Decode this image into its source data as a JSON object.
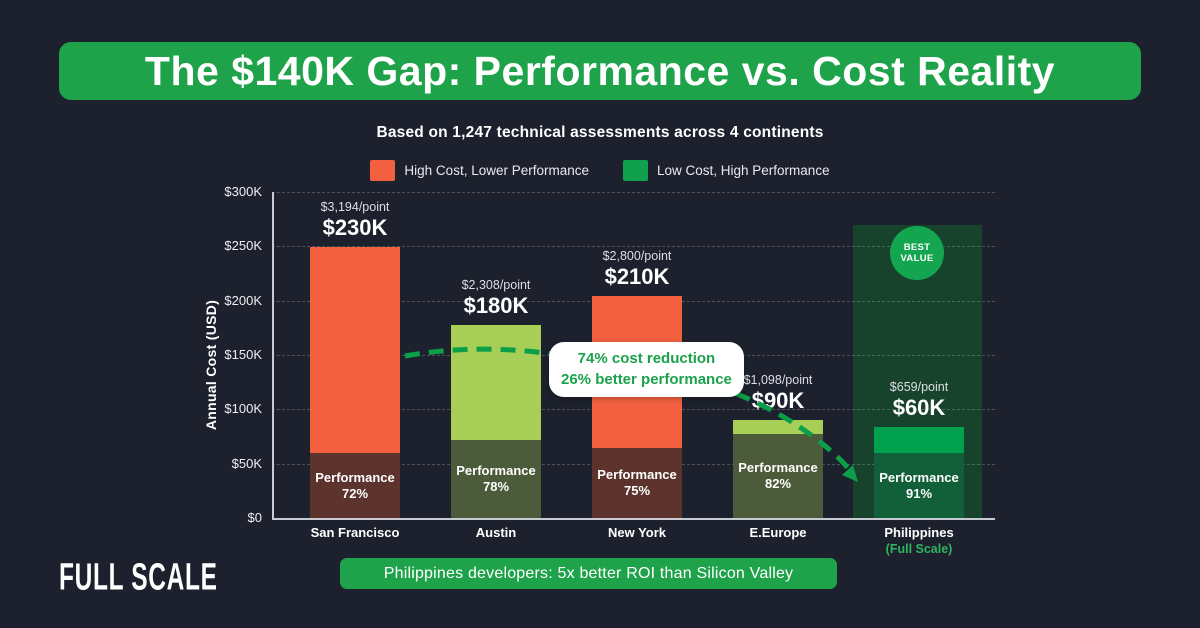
{
  "title": "The $140K Gap: Performance vs. Cost Reality",
  "subtitle": "Based on 1,247 technical assessments across 4 continents",
  "legend": [
    {
      "label": "High Cost, Lower Performance",
      "color": "#F2603F"
    },
    {
      "label": "Low Cost, High Performance",
      "color": "#0FA14D"
    }
  ],
  "chart_data": {
    "type": "bar",
    "title": "The $140K Gap: Performance vs. Cost Reality",
    "ylabel": "Annual Cost (USD)",
    "ylim_usd": [
      0,
      300000
    ],
    "y_ticks": [
      "$0",
      "$50K",
      "$100K",
      "$150K",
      "$200K",
      "$250K",
      "$300K"
    ],
    "grid": "dashed horizontal",
    "legend_position": "top center",
    "categories": [
      "San Francisco",
      "Austin",
      "New York",
      "E.Europe",
      "Philippines"
    ],
    "performance_word": "Performance",
    "bars": [
      {
        "city": "San Francisco",
        "annual_cost_usd": 230000,
        "cost_label": "$230K",
        "cost_per_point_label": "$3,194/point",
        "performance_pct": "72%",
        "segment_colors": {
          "cost": "#F2603F",
          "performance": "#5C342D"
        }
      },
      {
        "city": "Austin",
        "annual_cost_usd": 180000,
        "cost_label": "$180K",
        "cost_per_point_label": "$2,308/point",
        "performance_pct": "78%",
        "segment_colors": {
          "cost": "#A7CE56",
          "performance": "#4C5B39"
        }
      },
      {
        "city": "New York",
        "annual_cost_usd": 210000,
        "cost_label": "$210K",
        "cost_per_point_label": "$2,800/point",
        "performance_pct": "75%",
        "segment_colors": {
          "cost": "#F2603F",
          "performance": "#5C342D"
        }
      },
      {
        "city": "E.Europe",
        "annual_cost_usd": 90000,
        "cost_label": "$90K",
        "cost_per_point_label": "$1,098/point",
        "performance_pct": "82%",
        "segment_colors": {
          "cost": "#A7CE56",
          "performance": "#4C5B39"
        }
      },
      {
        "city": "Philippines",
        "sublabel": "(Full Scale)",
        "annual_cost_usd": 60000,
        "cost_label": "$60K",
        "cost_per_point_label": "$659/point",
        "performance_pct": "91%",
        "segment_colors": {
          "cost": "#00A04E",
          "performance": "#11603A"
        },
        "highlight": true,
        "badge": "BEST VALUE"
      }
    ]
  },
  "callout": {
    "line1": "74% cost reduction",
    "line2": "26% better performance"
  },
  "badge": {
    "line1": "BEST",
    "line2": "VALUE"
  },
  "footer_banner": "Philippines developers: 5x better ROI than Silicon Valley",
  "logo": "FULL SCALE",
  "colors": {
    "background": "#1D212D",
    "brand_green": "#1EA24A",
    "badge_green": "#14A551",
    "highlight_column_green": "#17432C",
    "arrow_green": "#0C9F49",
    "callout_text_green": "#1BA24B",
    "orange": "#F2603F",
    "light_green": "#A7CE56",
    "axis_gray": "#C8CBD2"
  }
}
